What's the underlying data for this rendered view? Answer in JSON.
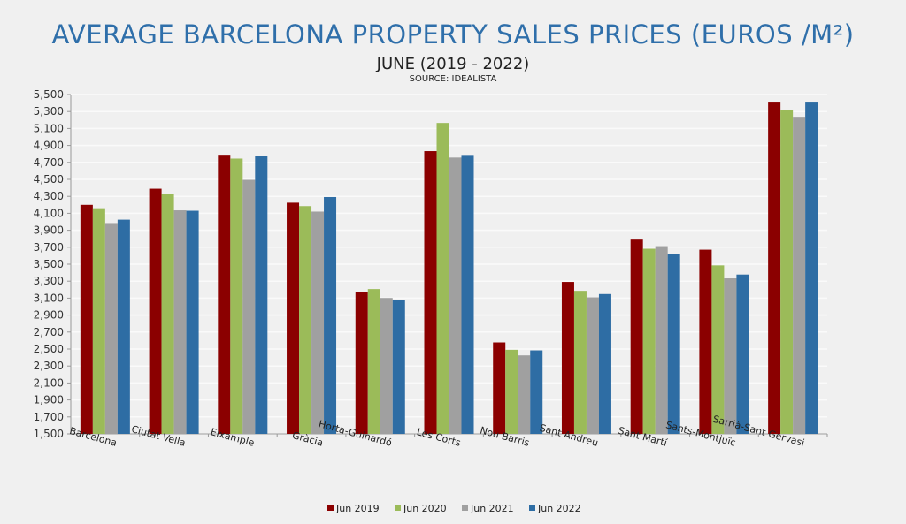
{
  "chart_data": {
    "type": "bar",
    "title": "AVERAGE BARCELONA PROPERTY SALES PRICES (EUROS /M²)",
    "subtitle": "JUNE (2019 - 2022)",
    "source": "SOURCE: IDEALISTA",
    "categories": [
      "Barcelona",
      "Ciutat Vella",
      "Eixample",
      "Gràcia",
      "Horta-Guinardó",
      "Les Corts",
      "Nou Barris",
      "Sant Andreu",
      "Sant Martí",
      "Sants-Montjuïc",
      "Sarrià-Sant Gervasi"
    ],
    "series": [
      {
        "name": "Jun 2019",
        "color": "#8b0000",
        "values": [
          4200,
          4390,
          4790,
          4225,
          3168,
          4833,
          2578,
          3291,
          3790,
          3671,
          5416
        ]
      },
      {
        "name": "Jun 2020",
        "color": "#9bbb59",
        "values": [
          4160,
          4330,
          4745,
          4185,
          3207,
          5165,
          2491,
          3186,
          3682,
          3486,
          5322
        ]
      },
      {
        "name": "Jun 2021",
        "color": "#a0a0a0",
        "values": [
          3985,
          4135,
          4495,
          4120,
          3102,
          4757,
          2425,
          3109,
          3713,
          3333,
          5238
        ]
      },
      {
        "name": "Jun 2022",
        "color": "#2e6da4",
        "values": [
          4025,
          4130,
          4778,
          4292,
          3081,
          4788,
          2484,
          3148,
          3622,
          3378,
          5416
        ]
      }
    ],
    "ylim": [
      1500,
      5500
    ],
    "yticks": [
      "1,500",
      "1,700",
      "1,900",
      "2,100",
      "2,300",
      "2,500",
      "2,700",
      "2,900",
      "3,100",
      "3,300",
      "3,500",
      "3,700",
      "3,900",
      "4,100",
      "4,300",
      "4,500",
      "4,700",
      "4,900",
      "5,100",
      "5,300",
      "5,500"
    ],
    "grid": true,
    "legend": "bottom"
  }
}
